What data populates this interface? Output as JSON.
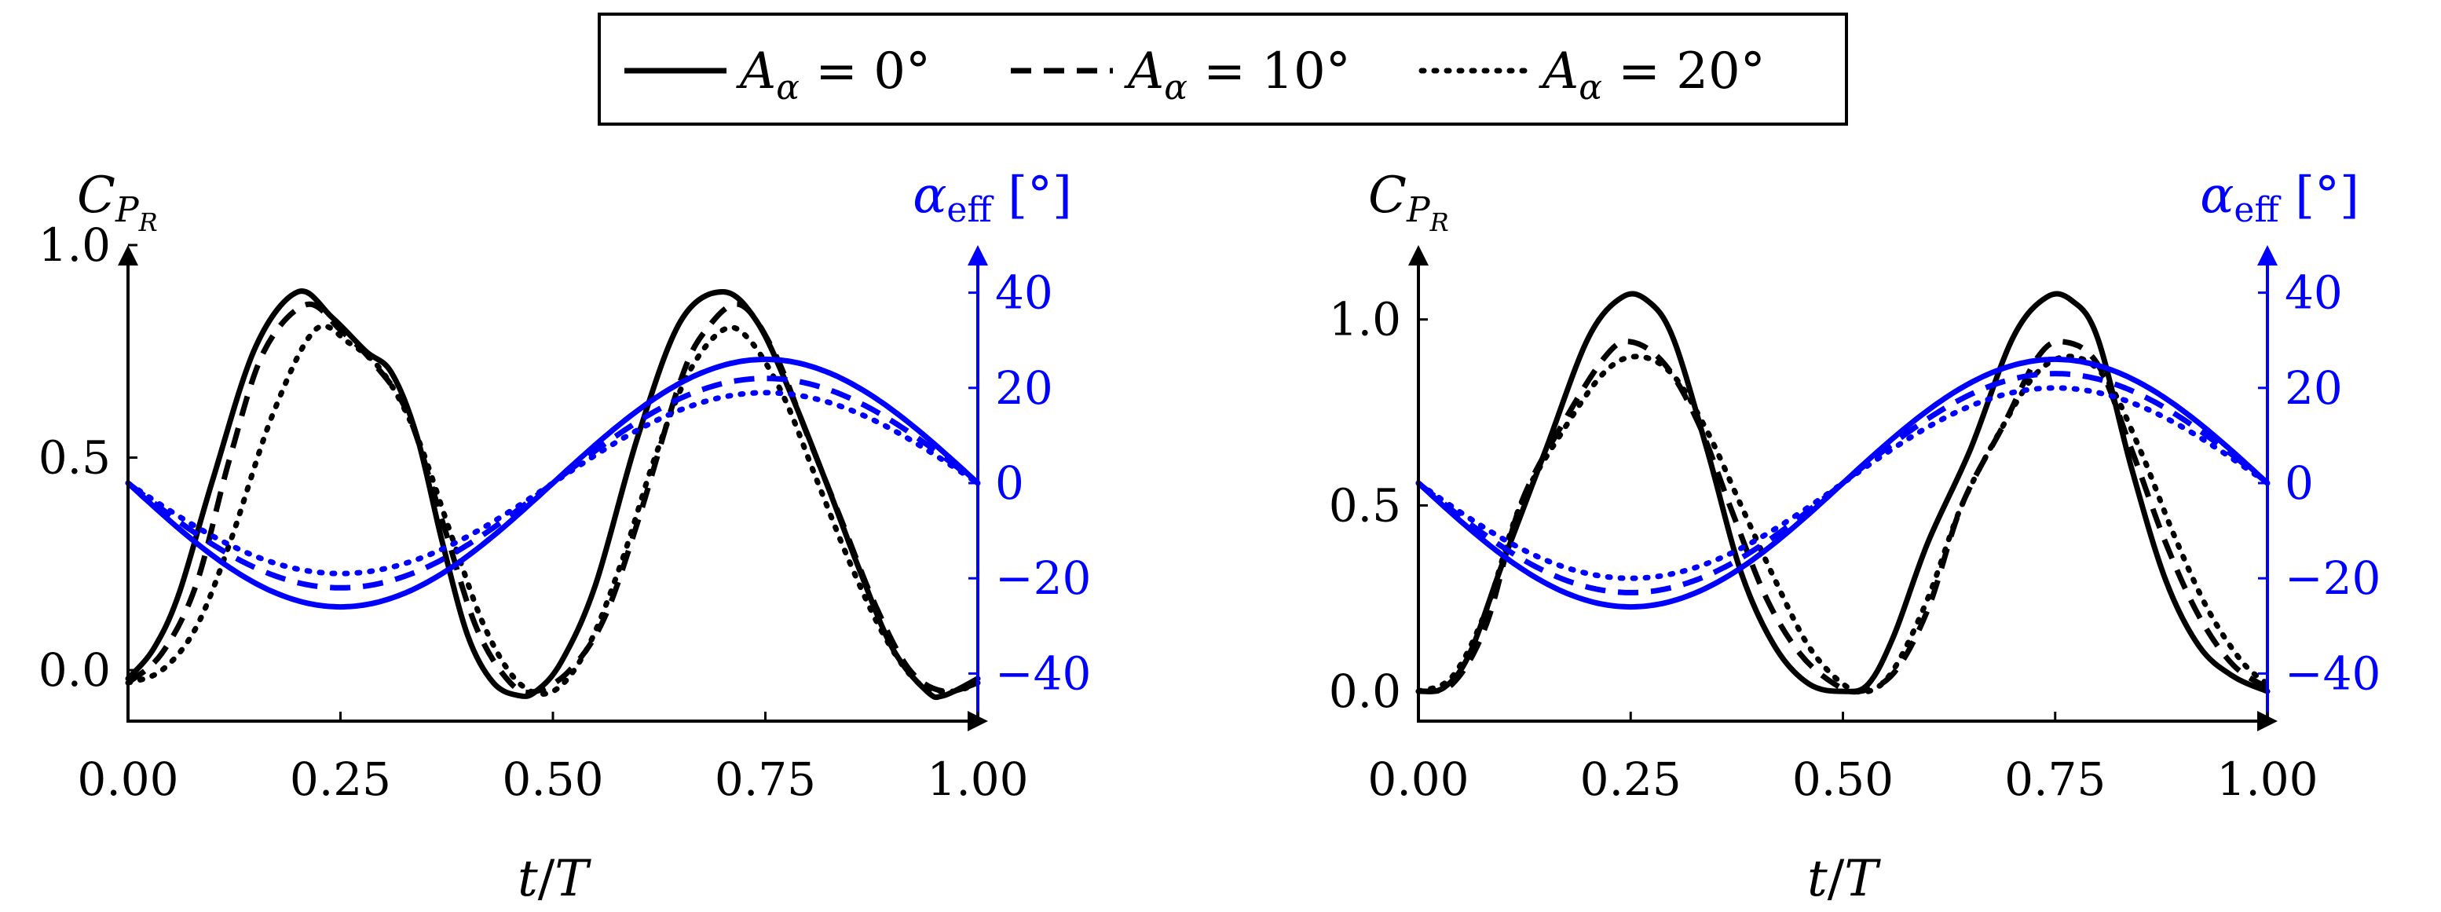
{
  "legend": {
    "entries": [
      {
        "style": "solid",
        "sym": "A",
        "sub": "α",
        "rest": " = 0°"
      },
      {
        "style": "dashed",
        "sym": "A",
        "sub": "α",
        "rest": " = 10°"
      },
      {
        "style": "dotted",
        "sym": "A",
        "sub": "α",
        "rest": " = 20°"
      }
    ]
  },
  "colors": {
    "primary": "#000000",
    "secondary": "#0000ff"
  },
  "chart_data": [
    {
      "type": "line",
      "ylabel_left": {
        "main": "C",
        "sub": "P",
        "subsub": "R"
      },
      "ylabel_right": {
        "main": "α",
        "sub": "eff",
        "unit": " [°]"
      },
      "xlabel": {
        "var": "t",
        "slash": "/",
        "den": "T"
      },
      "xlim": [
        0,
        1
      ],
      "ylim_left": [
        -0.12,
        1.0
      ],
      "ylim_right": [
        -50,
        50
      ],
      "x_ticks": [
        "0.00",
        "0.25",
        "0.50",
        "0.75",
        "1.00"
      ],
      "y_left_ticks": [
        "0.0",
        "0.5",
        "1.0"
      ],
      "y_right_ticks": [
        "40",
        "20",
        "0",
        "−20",
        "−40"
      ],
      "series": [
        {
          "name": "C_PR, A_α = 0°",
          "axis": "left",
          "style": "solid",
          "x": [
            0,
            0.03,
            0.06,
            0.1,
            0.15,
            0.2,
            0.24,
            0.28,
            0.31,
            0.34,
            0.37,
            0.4,
            0.43,
            0.46,
            0.48,
            0.51,
            0.55,
            0.6,
            0.65,
            0.7,
            0.74,
            0.78,
            0.82,
            0.86,
            0.9,
            0.94,
            0.96,
            1.0
          ],
          "y": [
            -0.02,
            0.05,
            0.18,
            0.45,
            0.76,
            0.89,
            0.83,
            0.75,
            0.7,
            0.55,
            0.3,
            0.08,
            -0.03,
            -0.06,
            -0.05,
            0.02,
            0.2,
            0.55,
            0.82,
            0.89,
            0.82,
            0.65,
            0.45,
            0.24,
            0.05,
            -0.05,
            -0.06,
            -0.02
          ]
        },
        {
          "name": "C_PR, A_α = 10°",
          "axis": "left",
          "style": "dashed",
          "x": [
            0,
            0.04,
            0.08,
            0.12,
            0.16,
            0.21,
            0.25,
            0.29,
            0.33,
            0.37,
            0.41,
            0.45,
            0.48,
            0.52,
            0.56,
            0.6,
            0.65,
            0.68,
            0.72,
            0.76,
            0.8,
            0.84,
            0.88,
            0.92,
            0.96,
            1.0
          ],
          "y": [
            -0.03,
            0.04,
            0.2,
            0.5,
            0.75,
            0.86,
            0.8,
            0.72,
            0.6,
            0.35,
            0.1,
            -0.03,
            -0.05,
            0.0,
            0.12,
            0.35,
            0.68,
            0.8,
            0.86,
            0.75,
            0.55,
            0.35,
            0.15,
            0.0,
            -0.05,
            -0.03
          ]
        },
        {
          "name": "C_PR, A_α = 20°",
          "axis": "left",
          "style": "dotted",
          "x": [
            0,
            0.04,
            0.08,
            0.12,
            0.17,
            0.22,
            0.26,
            0.3,
            0.34,
            0.38,
            0.42,
            0.46,
            0.5,
            0.54,
            0.58,
            0.62,
            0.66,
            0.7,
            0.73,
            0.77,
            0.81,
            0.85,
            0.89,
            0.93,
            0.97,
            1.0
          ],
          "y": [
            -0.03,
            0.0,
            0.1,
            0.3,
            0.6,
            0.8,
            0.77,
            0.7,
            0.55,
            0.32,
            0.1,
            -0.03,
            -0.05,
            0.05,
            0.25,
            0.5,
            0.7,
            0.8,
            0.78,
            0.65,
            0.45,
            0.25,
            0.08,
            -0.03,
            -0.05,
            -0.03
          ]
        },
        {
          "name": "α_eff, A_α = 0°",
          "axis": "right",
          "style": "solid",
          "color": "#0000ff",
          "amplitude": 26,
          "x_at_min": 0.25
        },
        {
          "name": "α_eff, A_α = 10°",
          "axis": "right",
          "style": "dashed",
          "color": "#0000ff",
          "amplitude": 22,
          "x_at_min": 0.25
        },
        {
          "name": "α_eff, A_α = 20°",
          "axis": "right",
          "style": "dotted",
          "color": "#0000ff",
          "amplitude": 19,
          "x_at_min": 0.25
        }
      ]
    },
    {
      "type": "line",
      "ylabel_left": {
        "main": "C",
        "sub": "P",
        "subsub": "R"
      },
      "ylabel_right": {
        "main": "α",
        "sub": "eff",
        "unit": " [°]"
      },
      "xlabel": {
        "var": "t",
        "slash": "/",
        "den": "T"
      },
      "xlim": [
        0,
        1
      ],
      "ylim_left": [
        -0.08,
        1.2
      ],
      "ylim_right": [
        -50,
        50
      ],
      "x_ticks": [
        "0.00",
        "0.25",
        "0.50",
        "0.75",
        "1.00"
      ],
      "y_left_ticks": [
        "0.0",
        "0.5",
        "1.0"
      ],
      "y_right_ticks": [
        "40",
        "20",
        "0",
        "−20",
        "−40"
      ],
      "series": [
        {
          "name": "C_PR, A_α = 0°",
          "axis": "left",
          "style": "solid",
          "x": [
            0,
            0.03,
            0.06,
            0.1,
            0.15,
            0.2,
            0.24,
            0.27,
            0.3,
            0.34,
            0.38,
            0.42,
            0.46,
            0.5,
            0.53,
            0.56,
            0.6,
            0.65,
            0.7,
            0.74,
            0.77,
            0.8,
            0.84,
            0.88,
            0.92,
            0.96,
            1.0
          ],
          "y": [
            0.0,
            0.01,
            0.1,
            0.35,
            0.65,
            0.95,
            1.06,
            1.05,
            0.95,
            0.65,
            0.32,
            0.12,
            0.02,
            0.0,
            0.02,
            0.15,
            0.4,
            0.65,
            0.95,
            1.06,
            1.05,
            0.95,
            0.6,
            0.3,
            0.12,
            0.04,
            0.0
          ]
        },
        {
          "name": "C_PR, A_α = 10°",
          "axis": "left",
          "style": "dashed",
          "x": [
            0,
            0.04,
            0.08,
            0.12,
            0.17,
            0.22,
            0.25,
            0.29,
            0.33,
            0.37,
            0.41,
            0.45,
            0.49,
            0.52,
            0.56,
            0.6,
            0.64,
            0.69,
            0.73,
            0.76,
            0.8,
            0.84,
            0.88,
            0.92,
            0.96,
            1.0
          ],
          "y": [
            0.0,
            0.02,
            0.18,
            0.5,
            0.72,
            0.9,
            0.94,
            0.88,
            0.72,
            0.48,
            0.25,
            0.1,
            0.02,
            0.0,
            0.05,
            0.22,
            0.5,
            0.72,
            0.9,
            0.94,
            0.88,
            0.65,
            0.4,
            0.2,
            0.07,
            0.01
          ]
        },
        {
          "name": "C_PR, A_α = 20°",
          "axis": "left",
          "style": "dotted",
          "x": [
            0,
            0.04,
            0.08,
            0.12,
            0.17,
            0.22,
            0.26,
            0.3,
            0.34,
            0.38,
            0.42,
            0.46,
            0.5,
            0.53,
            0.56,
            0.6,
            0.64,
            0.69,
            0.73,
            0.77,
            0.81,
            0.85,
            0.89,
            0.93,
            0.97,
            1.0
          ],
          "y": [
            0.0,
            0.04,
            0.22,
            0.5,
            0.7,
            0.86,
            0.9,
            0.85,
            0.7,
            0.5,
            0.3,
            0.12,
            0.02,
            0.0,
            0.06,
            0.25,
            0.5,
            0.72,
            0.86,
            0.9,
            0.84,
            0.65,
            0.42,
            0.22,
            0.08,
            0.02
          ]
        },
        {
          "name": "α_eff, A_α = 0°",
          "axis": "right",
          "style": "solid",
          "color": "#0000ff",
          "amplitude": 26,
          "x_at_min": 0.25
        },
        {
          "name": "α_eff, A_α = 10°",
          "axis": "right",
          "style": "dashed",
          "color": "#0000ff",
          "amplitude": 23,
          "x_at_min": 0.25
        },
        {
          "name": "α_eff, A_α = 20°",
          "axis": "right",
          "style": "dotted",
          "color": "#0000ff",
          "amplitude": 20,
          "x_at_min": 0.25
        }
      ]
    }
  ]
}
